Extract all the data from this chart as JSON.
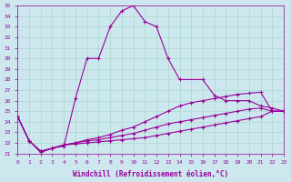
{
  "xlabel": "Windchill (Refroidissement éolien,°C)",
  "xlim": [
    0,
    23
  ],
  "ylim": [
    21,
    35
  ],
  "yticks": [
    21,
    22,
    23,
    24,
    25,
    26,
    27,
    28,
    29,
    30,
    31,
    32,
    33,
    34,
    35
  ],
  "xticks": [
    0,
    1,
    2,
    3,
    4,
    5,
    6,
    7,
    8,
    9,
    10,
    11,
    12,
    13,
    14,
    15,
    16,
    17,
    18,
    19,
    20,
    21,
    22,
    23
  ],
  "bg_color": "#cce8ee",
  "line_color": "#990099",
  "grid_color": "#aad8cc",
  "series": [
    {
      "x": [
        0,
        1,
        2,
        3,
        4,
        5,
        6,
        7,
        8,
        9,
        10,
        11,
        12,
        13,
        14,
        16,
        17,
        18,
        19,
        20,
        21,
        22,
        23
      ],
      "y": [
        24.5,
        22.2,
        21.1,
        21.5,
        21.7,
        26.2,
        30.0,
        30.0,
        33.0,
        34.5,
        35.0,
        33.5,
        33.0,
        30.0,
        28.0,
        28.0,
        26.5,
        26.0,
        26.0,
        26.0,
        25.5,
        25.3,
        25.0
      ]
    },
    {
      "x": [
        0,
        1,
        2,
        3,
        4,
        5,
        6,
        7,
        8,
        9,
        10,
        11,
        12,
        13,
        14,
        15,
        16,
        17,
        18,
        19,
        20,
        21,
        22,
        23
      ],
      "y": [
        24.5,
        22.2,
        21.2,
        21.5,
        21.8,
        22.0,
        22.3,
        22.5,
        22.8,
        23.2,
        23.5,
        24.0,
        24.5,
        25.0,
        25.5,
        25.8,
        26.0,
        26.2,
        26.4,
        26.6,
        26.7,
        26.8,
        25.0,
        25.0
      ]
    },
    {
      "x": [
        0,
        1,
        2,
        3,
        4,
        5,
        6,
        7,
        8,
        9,
        10,
        11,
        12,
        13,
        14,
        15,
        16,
        17,
        18,
        19,
        20,
        21,
        22,
        23
      ],
      "y": [
        24.5,
        22.2,
        21.2,
        21.5,
        21.8,
        22.0,
        22.2,
        22.3,
        22.5,
        22.7,
        22.9,
        23.2,
        23.5,
        23.8,
        24.0,
        24.2,
        24.4,
        24.6,
        24.8,
        25.0,
        25.2,
        25.3,
        25.0,
        25.0
      ]
    },
    {
      "x": [
        0,
        1,
        2,
        3,
        4,
        5,
        6,
        7,
        8,
        9,
        10,
        11,
        12,
        13,
        14,
        15,
        16,
        17,
        18,
        19,
        20,
        21,
        22,
        23
      ],
      "y": [
        24.5,
        22.2,
        21.2,
        21.5,
        21.8,
        21.9,
        22.0,
        22.1,
        22.2,
        22.3,
        22.4,
        22.5,
        22.7,
        22.9,
        23.1,
        23.3,
        23.5,
        23.7,
        23.9,
        24.1,
        24.3,
        24.5,
        25.0,
        25.0
      ]
    }
  ]
}
